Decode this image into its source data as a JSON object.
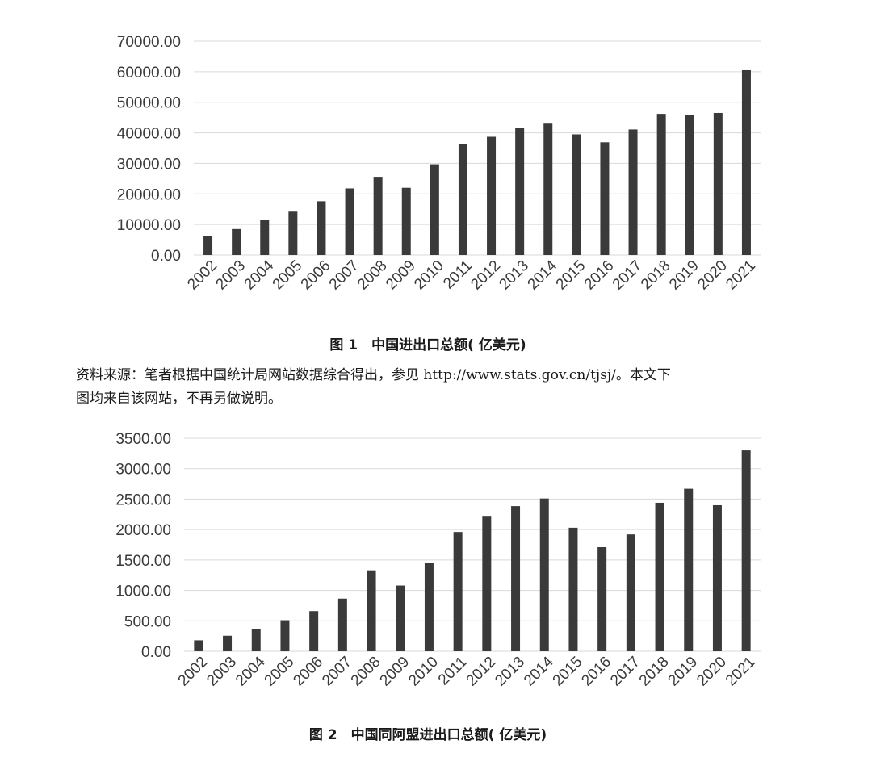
{
  "figure1": {
    "caption": "图 1　中国进出口总额( 亿美元)"
  },
  "source_note": {
    "line1": "资料来源：笔者根据中国统计局网站数据综合得出，参见 http://www.stats.gov.cn/tjsj/。本文下",
    "line2": "图均来自该网站，不再另做说明。"
  },
  "figure2": {
    "caption": "图 2　中国同阿盟进出口总额( 亿美元)"
  },
  "chart_data": [
    {
      "type": "bar",
      "title": "",
      "xlabel": "",
      "ylabel": "",
      "categories": [
        "2002",
        "2003",
        "2004",
        "2005",
        "2006",
        "2007",
        "2008",
        "2009",
        "2010",
        "2011",
        "2012",
        "2013",
        "2014",
        "2015",
        "2016",
        "2017",
        "2018",
        "2019",
        "2020",
        "2021"
      ],
      "values": [
        6200,
        8500,
        11500,
        14200,
        17600,
        21800,
        25600,
        22000,
        29700,
        36400,
        38700,
        41600,
        43000,
        39500,
        36900,
        41100,
        46200,
        45800,
        46500,
        60500
      ],
      "ylim": [
        0,
        70000
      ],
      "yticks": [
        "0.00",
        "10000.00",
        "20000.00",
        "30000.00",
        "40000.00",
        "50000.00",
        "60000.00",
        "70000.00"
      ],
      "grid": true,
      "legend": "none",
      "bar_color": "#3a3a3a"
    },
    {
      "type": "bar",
      "title": "",
      "xlabel": "",
      "ylabel": "",
      "categories": [
        "2002",
        "2003",
        "2004",
        "2005",
        "2006",
        "2007",
        "2008",
        "2009",
        "2010",
        "2011",
        "2012",
        "2013",
        "2014",
        "2015",
        "2016",
        "2017",
        "2018",
        "2019",
        "2020",
        "2021"
      ],
      "values": [
        180,
        255,
        365,
        510,
        660,
        865,
        1330,
        1080,
        1450,
        1960,
        2225,
        2385,
        2510,
        2030,
        1710,
        1920,
        2440,
        2670,
        2400,
        3300
      ],
      "ylim": [
        0,
        3500
      ],
      "yticks": [
        "0.00",
        "500.00",
        "1000.00",
        "1500.00",
        "2000.00",
        "2500.00",
        "3000.00",
        "3500.00"
      ],
      "grid": true,
      "legend": "none",
      "bar_color": "#3a3a3a"
    }
  ]
}
